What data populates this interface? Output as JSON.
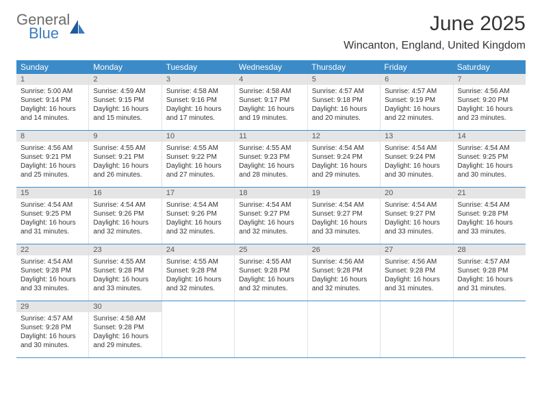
{
  "logo": {
    "word1": "General",
    "word2": "Blue",
    "word1_color": "#6b6b6b",
    "word2_color": "#3b7bbf",
    "icon_color": "#1e5a9e"
  },
  "title": "June 2025",
  "location": "Wincanton, England, United Kingdom",
  "colors": {
    "header_bg": "#3b8bc9",
    "header_text": "#ffffff",
    "daynum_bg": "#e5e5e5",
    "daynum_text": "#555555",
    "cell_border": "#e0e0e0",
    "row_border": "#3b8bc9",
    "body_text": "#333333"
  },
  "day_names": [
    "Sunday",
    "Monday",
    "Tuesday",
    "Wednesday",
    "Thursday",
    "Friday",
    "Saturday"
  ],
  "weeks": [
    [
      {
        "n": "1",
        "sr": "5:00 AM",
        "ss": "9:14 PM",
        "dl": "16 hours and 14 minutes."
      },
      {
        "n": "2",
        "sr": "4:59 AM",
        "ss": "9:15 PM",
        "dl": "16 hours and 15 minutes."
      },
      {
        "n": "3",
        "sr": "4:58 AM",
        "ss": "9:16 PM",
        "dl": "16 hours and 17 minutes."
      },
      {
        "n": "4",
        "sr": "4:58 AM",
        "ss": "9:17 PM",
        "dl": "16 hours and 19 minutes."
      },
      {
        "n": "5",
        "sr": "4:57 AM",
        "ss": "9:18 PM",
        "dl": "16 hours and 20 minutes."
      },
      {
        "n": "6",
        "sr": "4:57 AM",
        "ss": "9:19 PM",
        "dl": "16 hours and 22 minutes."
      },
      {
        "n": "7",
        "sr": "4:56 AM",
        "ss": "9:20 PM",
        "dl": "16 hours and 23 minutes."
      }
    ],
    [
      {
        "n": "8",
        "sr": "4:56 AM",
        "ss": "9:21 PM",
        "dl": "16 hours and 25 minutes."
      },
      {
        "n": "9",
        "sr": "4:55 AM",
        "ss": "9:21 PM",
        "dl": "16 hours and 26 minutes."
      },
      {
        "n": "10",
        "sr": "4:55 AM",
        "ss": "9:22 PM",
        "dl": "16 hours and 27 minutes."
      },
      {
        "n": "11",
        "sr": "4:55 AM",
        "ss": "9:23 PM",
        "dl": "16 hours and 28 minutes."
      },
      {
        "n": "12",
        "sr": "4:54 AM",
        "ss": "9:24 PM",
        "dl": "16 hours and 29 minutes."
      },
      {
        "n": "13",
        "sr": "4:54 AM",
        "ss": "9:24 PM",
        "dl": "16 hours and 30 minutes."
      },
      {
        "n": "14",
        "sr": "4:54 AM",
        "ss": "9:25 PM",
        "dl": "16 hours and 30 minutes."
      }
    ],
    [
      {
        "n": "15",
        "sr": "4:54 AM",
        "ss": "9:25 PM",
        "dl": "16 hours and 31 minutes."
      },
      {
        "n": "16",
        "sr": "4:54 AM",
        "ss": "9:26 PM",
        "dl": "16 hours and 32 minutes."
      },
      {
        "n": "17",
        "sr": "4:54 AM",
        "ss": "9:26 PM",
        "dl": "16 hours and 32 minutes."
      },
      {
        "n": "18",
        "sr": "4:54 AM",
        "ss": "9:27 PM",
        "dl": "16 hours and 32 minutes."
      },
      {
        "n": "19",
        "sr": "4:54 AM",
        "ss": "9:27 PM",
        "dl": "16 hours and 33 minutes."
      },
      {
        "n": "20",
        "sr": "4:54 AM",
        "ss": "9:27 PM",
        "dl": "16 hours and 33 minutes."
      },
      {
        "n": "21",
        "sr": "4:54 AM",
        "ss": "9:28 PM",
        "dl": "16 hours and 33 minutes."
      }
    ],
    [
      {
        "n": "22",
        "sr": "4:54 AM",
        "ss": "9:28 PM",
        "dl": "16 hours and 33 minutes."
      },
      {
        "n": "23",
        "sr": "4:55 AM",
        "ss": "9:28 PM",
        "dl": "16 hours and 33 minutes."
      },
      {
        "n": "24",
        "sr": "4:55 AM",
        "ss": "9:28 PM",
        "dl": "16 hours and 32 minutes."
      },
      {
        "n": "25",
        "sr": "4:55 AM",
        "ss": "9:28 PM",
        "dl": "16 hours and 32 minutes."
      },
      {
        "n": "26",
        "sr": "4:56 AM",
        "ss": "9:28 PM",
        "dl": "16 hours and 32 minutes."
      },
      {
        "n": "27",
        "sr": "4:56 AM",
        "ss": "9:28 PM",
        "dl": "16 hours and 31 minutes."
      },
      {
        "n": "28",
        "sr": "4:57 AM",
        "ss": "9:28 PM",
        "dl": "16 hours and 31 minutes."
      }
    ],
    [
      {
        "n": "29",
        "sr": "4:57 AM",
        "ss": "9:28 PM",
        "dl": "16 hours and 30 minutes."
      },
      {
        "n": "30",
        "sr": "4:58 AM",
        "ss": "9:28 PM",
        "dl": "16 hours and 29 minutes."
      },
      null,
      null,
      null,
      null,
      null
    ]
  ],
  "labels": {
    "sunrise": "Sunrise: ",
    "sunset": "Sunset: ",
    "daylight": "Daylight: "
  }
}
